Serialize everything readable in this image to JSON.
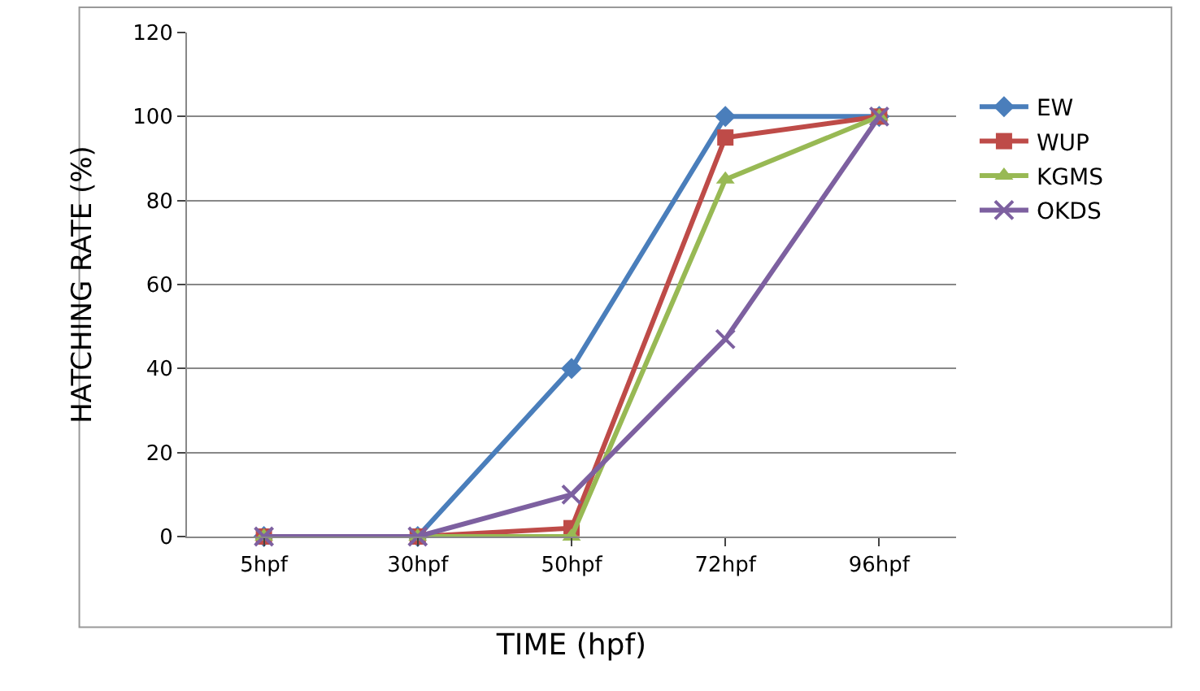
{
  "chart_data": {
    "type": "line",
    "xlabel": "TIME (hpf)",
    "ylabel": "HATCHING RATE (%)",
    "categories": [
      "5hpf",
      "30hpf",
      "50hpf",
      "72hpf",
      "96hpf"
    ],
    "series": [
      {
        "name": "EW",
        "color": "#4a7ebb",
        "marker": "diamond",
        "values": [
          0,
          0,
          40,
          100,
          100
        ]
      },
      {
        "name": "WUP",
        "color": "#be4b48",
        "marker": "square",
        "values": [
          0,
          0,
          2,
          95,
          100
        ]
      },
      {
        "name": "KGMS",
        "color": "#98b954",
        "marker": "triangle",
        "values": [
          0,
          0,
          0,
          85,
          100
        ]
      },
      {
        "name": "OKDS",
        "color": "#7d60a0",
        "marker": "cross",
        "values": [
          0,
          0,
          10,
          47,
          100
        ]
      }
    ],
    "ylim": [
      0,
      120
    ],
    "yticks": [
      0,
      20,
      40,
      60,
      80,
      100,
      120
    ],
    "grid": "y",
    "legend": "right",
    "line_style": "solid"
  }
}
